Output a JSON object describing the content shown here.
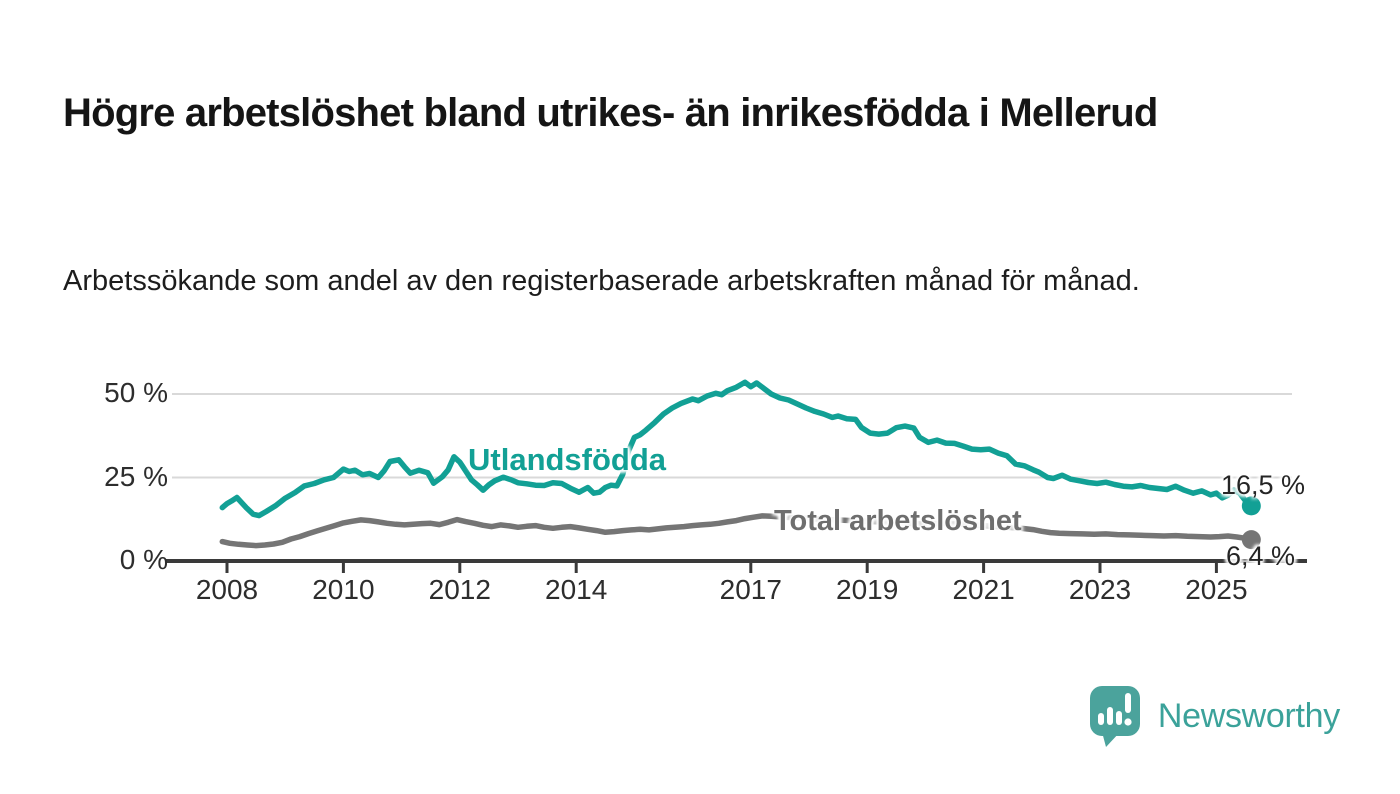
{
  "header": {
    "title": "Högre arbetslöshet bland utrikes- än inrikesfödda i Mellerud",
    "subtitle": "Arbetssökande som andel av den registerbaserade arbetskraften månad för månad."
  },
  "footer": {
    "brand": "Newsworthy"
  },
  "colors": {
    "accent_teal": "#12A095",
    "series_gray": "#757575",
    "axis": "#3A3A3A",
    "grid": "#D9D9D9",
    "text_dark": "#1A1A1A",
    "logo_bubble": "#4BA39C",
    "logo_text": "#3BA29A"
  },
  "chart_data": {
    "type": "line",
    "title": "Högre arbetslöshet bland utrikes- än inrikesfödda i Mellerud",
    "subtitle": "Arbetssökande som andel av den registerbaserade arbetskraften månad för månad.",
    "xlabel": "",
    "ylabel": "",
    "x_axis": {
      "ticks": [
        2008,
        2010,
        2012,
        2014,
        2017,
        2019,
        2021,
        2023,
        2025
      ],
      "range": [
        2007.8,
        2025.8
      ]
    },
    "y_axis": {
      "ticks": [
        {
          "v": 0,
          "label": "0 %"
        },
        {
          "v": 25,
          "label": "25 %"
        },
        {
          "v": 50,
          "label": "50 %"
        }
      ],
      "gridlines": [
        25,
        50
      ],
      "range": [
        0,
        60
      ]
    },
    "grid": true,
    "legend_position": "inline-labels",
    "series": [
      {
        "name": "Utlandsfödda",
        "color": "#12A095",
        "end_label": "16,5 %",
        "last_value": 16.5,
        "x": [
          2007.92,
          2008.0,
          2008.08,
          2008.17,
          2008.25,
          2008.33,
          2008.45,
          2008.55,
          2008.67,
          2008.83,
          2009.0,
          2009.17,
          2009.33,
          2009.5,
          2009.67,
          2009.83,
          2010.0,
          2010.1,
          2010.2,
          2010.33,
          2010.45,
          2010.6,
          2010.7,
          2010.8,
          2010.95,
          2011.05,
          2011.15,
          2011.3,
          2011.45,
          2011.55,
          2011.7,
          2011.8,
          2011.9,
          2012.0,
          2012.1,
          2012.2,
          2012.3,
          2012.4,
          2012.5,
          2012.6,
          2012.75,
          2012.9,
          2013.0,
          2013.15,
          2013.3,
          2013.45,
          2013.6,
          2013.75,
          2013.9,
          2014.05,
          2014.2,
          2014.3,
          2014.4,
          2014.5,
          2014.6,
          2014.7,
          2014.8,
          2014.9,
          2015.0,
          2015.1,
          2015.2,
          2015.35,
          2015.5,
          2015.65,
          2015.8,
          2016.0,
          2016.1,
          2016.25,
          2016.4,
          2016.5,
          2016.6,
          2016.75,
          2016.9,
          2017.0,
          2017.1,
          2017.2,
          2017.35,
          2017.5,
          2017.65,
          2017.8,
          2017.95,
          2018.1,
          2018.25,
          2018.4,
          2018.5,
          2018.65,
          2018.8,
          2018.9,
          2019.05,
          2019.2,
          2019.35,
          2019.5,
          2019.65,
          2019.8,
          2019.9,
          2020.05,
          2020.2,
          2020.35,
          2020.5,
          2020.65,
          2020.8,
          2020.95,
          2021.1,
          2021.25,
          2021.4,
          2021.55,
          2021.7,
          2021.85,
          2021.95,
          2022.1,
          2022.2,
          2022.35,
          2022.5,
          2022.65,
          2022.8,
          2022.95,
          2023.1,
          2023.25,
          2023.4,
          2023.55,
          2023.7,
          2023.85,
          2024.0,
          2024.15,
          2024.3,
          2024.45,
          2024.6,
          2024.75,
          2024.9,
          2025.0,
          2025.1,
          2025.2,
          2025.3,
          2025.4,
          2025.5,
          2025.6
        ],
        "values": [
          16.0,
          17.2,
          18.0,
          19.0,
          17.5,
          16.0,
          14.0,
          13.6,
          14.8,
          16.5,
          18.8,
          20.5,
          22.5,
          23.2,
          24.3,
          25.0,
          27.5,
          26.8,
          27.2,
          25.8,
          26.2,
          25.0,
          27.0,
          29.8,
          30.3,
          28.2,
          26.3,
          27.2,
          26.4,
          23.3,
          25.2,
          27.3,
          31.2,
          29.6,
          27.0,
          24.3,
          22.8,
          21.2,
          22.8,
          24.0,
          25.1,
          24.2,
          23.4,
          23.1,
          22.7,
          22.6,
          23.4,
          23.2,
          21.8,
          20.6,
          22.0,
          20.3,
          20.6,
          22.0,
          22.7,
          22.5,
          26.0,
          33.0,
          37.0,
          37.8,
          39.2,
          41.5,
          44.0,
          45.8,
          47.2,
          48.5,
          48.0,
          49.4,
          50.2,
          49.8,
          51.0,
          52.0,
          53.5,
          52.2,
          53.3,
          52.0,
          50.0,
          48.8,
          48.2,
          47.0,
          45.8,
          44.8,
          44.0,
          43.0,
          43.4,
          42.6,
          42.4,
          40.0,
          38.3,
          38.0,
          38.3,
          39.9,
          40.4,
          39.8,
          37.0,
          35.5,
          36.2,
          35.3,
          35.2,
          34.4,
          33.5,
          33.3,
          33.5,
          32.3,
          31.5,
          29.0,
          28.5,
          27.3,
          26.6,
          25.0,
          24.7,
          25.7,
          24.5,
          24.0,
          23.5,
          23.2,
          23.6,
          22.9,
          22.4,
          22.2,
          22.6,
          22.0,
          21.7,
          21.4,
          22.4,
          21.2,
          20.3,
          21.0,
          19.8,
          20.3,
          18.9,
          19.7,
          21.3,
          20.3,
          18.0,
          16.5
        ]
      },
      {
        "name": "Total arbetslöshet",
        "color": "#757575",
        "end_label": "6,4 %",
        "last_value": 6.4,
        "x": [
          2007.92,
          2008.05,
          2008.2,
          2008.35,
          2008.5,
          2008.65,
          2008.8,
          2008.95,
          2009.1,
          2009.25,
          2009.4,
          2009.55,
          2009.7,
          2009.85,
          2010.0,
          2010.15,
          2010.3,
          2010.45,
          2010.6,
          2010.75,
          2010.9,
          2011.05,
          2011.2,
          2011.35,
          2011.5,
          2011.65,
          2011.8,
          2011.95,
          2012.1,
          2012.25,
          2012.4,
          2012.55,
          2012.7,
          2012.85,
          2013.0,
          2013.15,
          2013.3,
          2013.45,
          2013.6,
          2013.75,
          2013.9,
          2014.05,
          2014.2,
          2014.35,
          2014.5,
          2014.65,
          2014.8,
          2014.95,
          2015.1,
          2015.25,
          2015.4,
          2015.55,
          2015.7,
          2015.85,
          2016.0,
          2016.15,
          2016.3,
          2016.45,
          2016.6,
          2016.75,
          2016.9,
          2017.05,
          2017.2,
          2017.35,
          2017.5,
          2017.7,
          2017.9,
          2018.1,
          2018.35,
          2018.6,
          2018.85,
          2019.1,
          2019.35,
          2019.6,
          2019.85,
          2020.1,
          2020.3,
          2020.5,
          2020.75,
          2021.0,
          2021.25,
          2021.5,
          2021.7,
          2021.85,
          2022.0,
          2022.15,
          2022.3,
          2022.5,
          2022.7,
          2022.9,
          2023.1,
          2023.3,
          2023.5,
          2023.7,
          2023.9,
          2024.1,
          2024.3,
          2024.5,
          2024.7,
          2024.9,
          2025.05,
          2025.2,
          2025.35,
          2025.5,
          2025.6
        ],
        "values": [
          5.8,
          5.3,
          5.0,
          4.8,
          4.6,
          4.8,
          5.1,
          5.6,
          6.6,
          7.3,
          8.2,
          9.0,
          9.8,
          10.6,
          11.4,
          11.9,
          12.3,
          12.1,
          11.7,
          11.3,
          11.0,
          10.8,
          11.0,
          11.2,
          11.3,
          10.9,
          11.6,
          12.4,
          11.8,
          11.3,
          10.7,
          10.3,
          10.8,
          10.5,
          10.1,
          10.4,
          10.6,
          10.1,
          9.8,
          10.1,
          10.3,
          9.9,
          9.5,
          9.1,
          8.6,
          8.8,
          9.1,
          9.3,
          9.5,
          9.3,
          9.6,
          9.9,
          10.1,
          10.3,
          10.6,
          10.8,
          11.0,
          11.3,
          11.7,
          12.1,
          12.7,
          13.1,
          13.5,
          13.4,
          13.2,
          13.0,
          12.8,
          12.6,
          12.4,
          12.2,
          12.0,
          11.8,
          11.6,
          11.4,
          11.2,
          11.1,
          11.3,
          11.2,
          10.9,
          10.6,
          10.3,
          10.0,
          9.7,
          9.4,
          8.9,
          8.5,
          8.3,
          8.2,
          8.1,
          8.0,
          8.1,
          7.9,
          7.8,
          7.7,
          7.6,
          7.5,
          7.6,
          7.4,
          7.3,
          7.2,
          7.3,
          7.5,
          7.2,
          6.8,
          6.4
        ]
      }
    ]
  }
}
